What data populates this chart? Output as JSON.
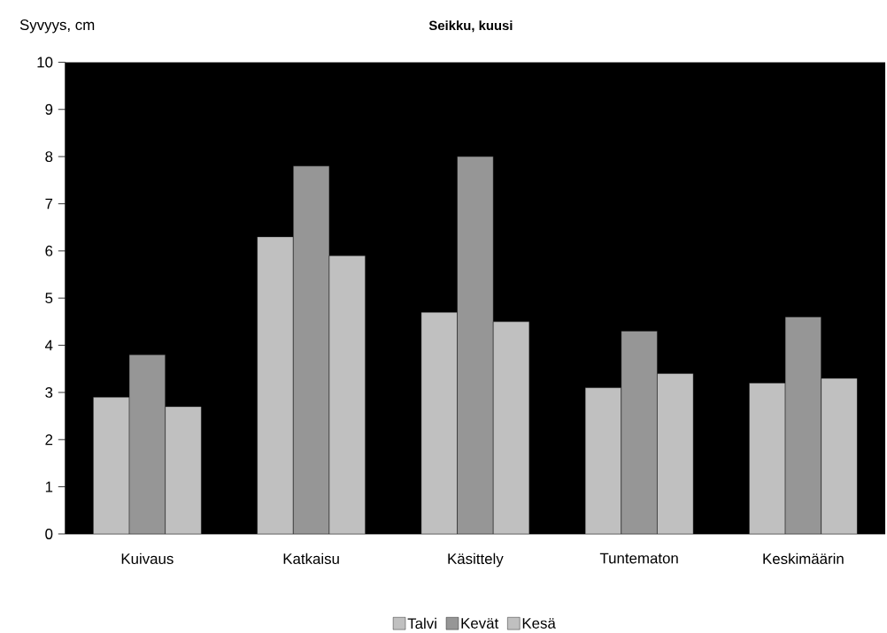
{
  "chart_data": {
    "type": "bar",
    "title": "Seikku, kuusi",
    "ylabel": "Syvyys, cm",
    "categories": [
      "Kuivaus",
      "Katkaisu",
      "Käsittely",
      "Tuntematon",
      "Keskimäärin"
    ],
    "series": [
      {
        "name": "Talvi",
        "color": "#c0c0c0",
        "values": [
          2.9,
          6.3,
          4.7,
          3.1,
          3.2
        ]
      },
      {
        "name": "Kevät",
        "color": "#969696",
        "values": [
          3.8,
          7.8,
          8.0,
          4.3,
          4.6
        ]
      },
      {
        "name": "Kesä",
        "color": "#c0c0c0",
        "values": [
          2.7,
          5.9,
          4.5,
          3.4,
          3.3
        ]
      }
    ],
    "ylim": [
      0,
      10
    ],
    "yticks": [
      0,
      1,
      2,
      3,
      4,
      5,
      6,
      7,
      8,
      9,
      10
    ],
    "grid": false,
    "legend": "bottom"
  }
}
